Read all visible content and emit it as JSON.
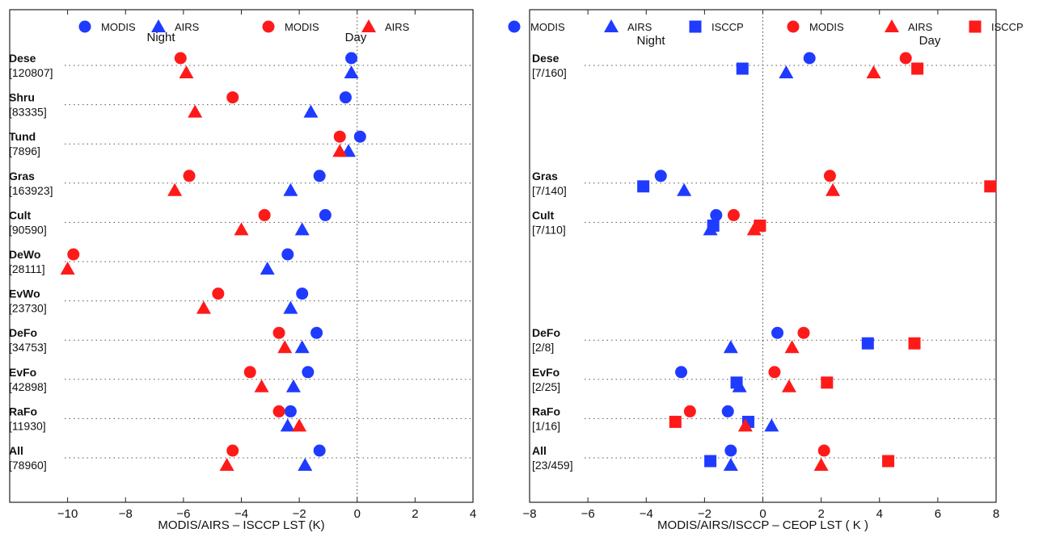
{
  "chart_data": [
    {
      "type": "scatter",
      "xlabel": "MODIS/AIRS – ISCCP LST (K)",
      "xlim": [
        -12,
        4
      ],
      "xticks": [
        -10,
        -8,
        -6,
        -4,
        -2,
        0,
        2,
        4
      ],
      "xtick_labels": [
        "−10",
        "−8",
        "−6",
        "−4",
        "−2",
        "0",
        "2",
        "4"
      ],
      "mode_labels": {
        "night": "Night",
        "day": "Day"
      },
      "legend_position": "top",
      "legend": [
        {
          "text": "MODIS",
          "marker": "circle",
          "color": "#1f3bff"
        },
        {
          "text": "AIRS",
          "marker": "triangle",
          "color": "#1f3bff"
        },
        {
          "text": "MODIS",
          "marker": "circle",
          "color": "#ff1a1a"
        },
        {
          "text": "AIRS",
          "marker": "triangle",
          "color": "#ff1a1a"
        }
      ],
      "categories": [
        {
          "name": "Dese",
          "count": "[120807]"
        },
        {
          "name": "Shru",
          "count": "[83335]"
        },
        {
          "name": "Tund",
          "count": "[7896]"
        },
        {
          "name": "Gras",
          "count": "[163923]"
        },
        {
          "name": "Cult",
          "count": "[90590]"
        },
        {
          "name": "DeWo",
          "count": "[28111]"
        },
        {
          "name": "EvWo",
          "count": "[23730]"
        },
        {
          "name": "DeFo",
          "count": "[34753]"
        },
        {
          "name": "EvFo",
          "count": "[42898]"
        },
        {
          "name": "RaFo",
          "count": "[11930]"
        },
        {
          "name": "All",
          "count": "[78960]"
        }
      ],
      "series": [
        {
          "sensor": "MODIS",
          "marker": "circle",
          "color": "#1f3bff",
          "row_offset": "upper",
          "values": [
            -0.2,
            -0.4,
            0.1,
            -1.3,
            -1.1,
            -2.4,
            -1.9,
            -1.4,
            -1.7,
            -2.3,
            -1.3
          ]
        },
        {
          "sensor": "AIRS",
          "marker": "triangle",
          "color": "#1f3bff",
          "row_offset": "lower",
          "values": [
            -0.2,
            -1.6,
            -0.3,
            -2.3,
            -1.9,
            -3.1,
            -2.3,
            -1.9,
            -2.2,
            -2.4,
            -1.8
          ]
        },
        {
          "sensor": "MODIS",
          "marker": "circle",
          "color": "#ff1a1a",
          "row_offset": "upper",
          "values": [
            -6.1,
            -4.3,
            -0.6,
            -5.8,
            -3.2,
            -9.8,
            -4.8,
            -2.7,
            -3.7,
            -2.7,
            -4.3
          ]
        },
        {
          "sensor": "AIRS",
          "marker": "triangle",
          "color": "#ff1a1a",
          "row_offset": "lower",
          "values": [
            -5.9,
            -5.6,
            -0.6,
            -6.3,
            -4.0,
            -10.0,
            -5.3,
            -2.5,
            -3.3,
            -2.0,
            -4.5
          ]
        }
      ]
    },
    {
      "type": "scatter",
      "xlabel": "MODIS/AIRS/ISCCP – CEOP LST ( K )",
      "xlim": [
        -8,
        8
      ],
      "xticks": [
        -8,
        -6,
        -4,
        -2,
        0,
        2,
        4,
        6,
        8
      ],
      "xtick_labels": [
        "−8",
        "−6",
        "−4",
        "−2",
        "0",
        "2",
        "4",
        "6",
        "8"
      ],
      "mode_labels": {
        "night": "Night",
        "day": "Day"
      },
      "legend_position": "top",
      "legend": [
        {
          "text": "MODIS",
          "marker": "circle",
          "color": "#1f3bff"
        },
        {
          "text": "AIRS",
          "marker": "triangle",
          "color": "#1f3bff"
        },
        {
          "text": "ISCCP",
          "marker": "square",
          "color": "#1f3bff"
        },
        {
          "text": "MODIS",
          "marker": "circle",
          "color": "#ff1a1a"
        },
        {
          "text": "AIRS",
          "marker": "triangle",
          "color": "#ff1a1a"
        },
        {
          "text": "ISCCP",
          "marker": "square",
          "color": "#ff1a1a"
        }
      ],
      "categories": [
        {
          "name": "Dese",
          "count": "[7/160]"
        },
        {
          "name": "",
          "count": ""
        },
        {
          "name": "",
          "count": ""
        },
        {
          "name": "Gras",
          "count": "[7/140]"
        },
        {
          "name": "Cult",
          "count": "[7/110]"
        },
        {
          "name": "",
          "count": ""
        },
        {
          "name": "",
          "count": ""
        },
        {
          "name": "DeFo",
          "count": "[2/8]"
        },
        {
          "name": "EvFo",
          "count": "[2/25]"
        },
        {
          "name": "RaFo",
          "count": "[1/16]"
        },
        {
          "name": "All",
          "count": "[23/459]"
        }
      ],
      "series": [
        {
          "sensor": "MODIS",
          "marker": "circle",
          "color": "#1f3bff",
          "row_offset": "upper",
          "values": [
            1.6,
            null,
            null,
            -3.5,
            -1.6,
            null,
            null,
            0.5,
            -2.8,
            -1.2,
            -1.1
          ]
        },
        {
          "sensor": "AIRS",
          "marker": "triangle",
          "color": "#1f3bff",
          "row_offset": "lower",
          "values": [
            0.8,
            null,
            null,
            -2.7,
            -1.8,
            null,
            null,
            -1.1,
            -0.8,
            0.3,
            -1.1
          ]
        },
        {
          "sensor": "ISCCP",
          "marker": "square",
          "color": "#1f3bff",
          "row_offset": "mid",
          "values": [
            -0.7,
            null,
            null,
            -4.1,
            -1.7,
            null,
            null,
            3.6,
            -0.9,
            -0.5,
            -1.8
          ]
        },
        {
          "sensor": "MODIS",
          "marker": "circle",
          "color": "#ff1a1a",
          "row_offset": "upper",
          "values": [
            4.9,
            null,
            null,
            2.3,
            -1.0,
            null,
            null,
            1.4,
            0.4,
            -2.5,
            2.1
          ]
        },
        {
          "sensor": "AIRS",
          "marker": "triangle",
          "color": "#ff1a1a",
          "row_offset": "lower",
          "values": [
            3.8,
            null,
            null,
            2.4,
            -0.3,
            null,
            null,
            1.0,
            0.9,
            -0.6,
            2.0
          ]
        },
        {
          "sensor": "ISCCP",
          "marker": "square",
          "color": "#ff1a1a",
          "row_offset": "mid",
          "values": [
            5.3,
            null,
            null,
            7.8,
            -0.1,
            null,
            null,
            5.2,
            2.2,
            -3.0,
            4.3
          ]
        }
      ]
    }
  ]
}
